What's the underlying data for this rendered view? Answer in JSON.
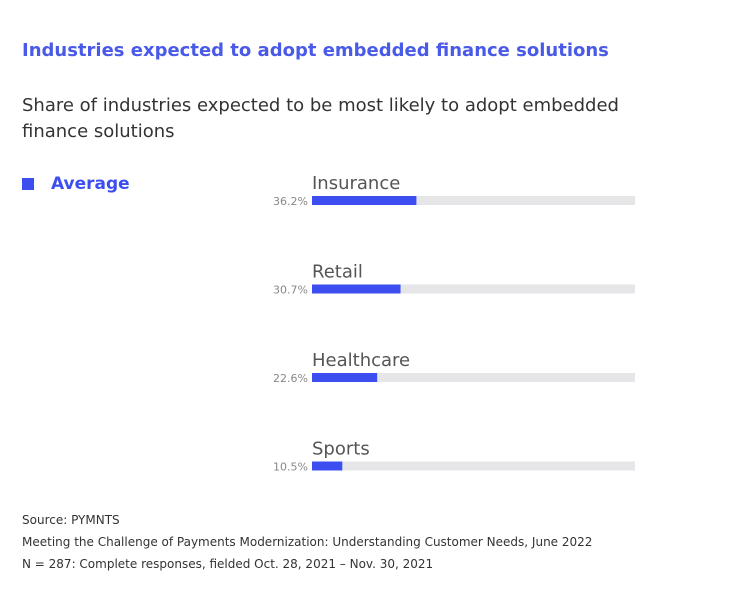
{
  "chart_data": {
    "type": "bar",
    "title": "Industries expected to adopt embedded finance solutions",
    "subtitle": [
      "Share of industries expected to be most likely to adopt embedded",
      "finance solutions"
    ],
    "categories": [
      "Insurance",
      "Retail",
      "Healthcare",
      "Sports"
    ],
    "series": [
      {
        "name": "Average",
        "color": "#3d4ef0",
        "values": [
          36.2,
          30.7,
          22.6,
          10.5
        ],
        "value_labels": [
          "36.2%",
          "30.7%",
          "22.6%",
          "10.5%"
        ]
      }
    ],
    "xlim": [
      0,
      112
    ],
    "track_color": "#e6e6e9",
    "source": [
      "Source: PYMNTS",
      "Meeting the Challenge of Payments Modernization: Understanding Customer Needs, June 2022",
      "N = 287: Complete responses, fielded Oct. 28, 2021 – Nov. 30, 2021"
    ]
  }
}
